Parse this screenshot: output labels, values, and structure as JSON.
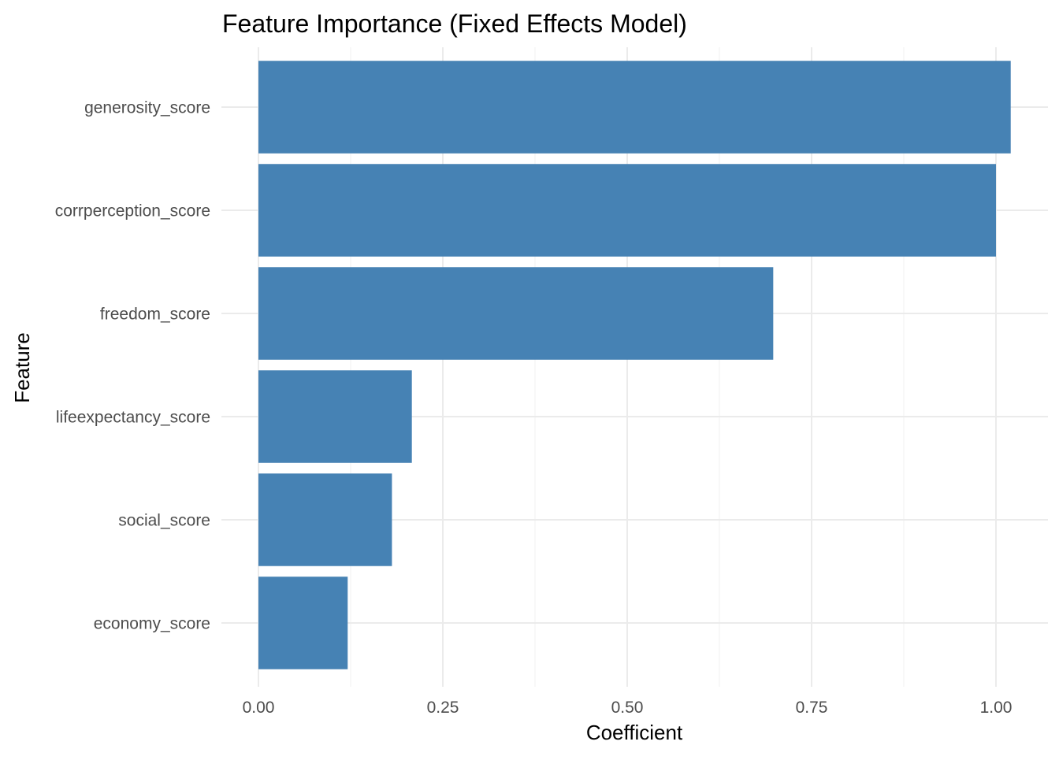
{
  "chart_data": {
    "type": "bar",
    "orientation": "horizontal",
    "title": "Feature Importance (Fixed Effects Model)",
    "xlabel": "Coefficient",
    "ylabel": "Feature",
    "categories": [
      "generosity_score",
      "corrperception_score",
      "freedom_score",
      "lifeexpectancy_score",
      "social_score",
      "economy_score"
    ],
    "values": [
      1.02,
      1.0,
      0.698,
      0.208,
      0.181,
      0.121
    ],
    "xlim": [
      0,
      1.05
    ],
    "x_ticks": [
      0,
      0.25,
      0.5,
      0.75,
      1.0
    ],
    "x_tick_labels": [
      "0.00",
      "0.25",
      "0.50",
      "0.75",
      "1.00"
    ],
    "grid": true,
    "legend": "none",
    "bar_color": "#4682b4"
  }
}
